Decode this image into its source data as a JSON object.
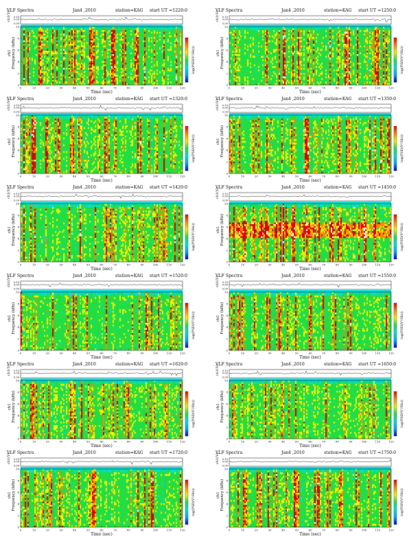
{
  "figure": {
    "panel_title_prefix": "VLF Spectra",
    "date": "Jan4 ,2010",
    "station": "station=KAG",
    "start_prefix": "start UT",
    "ch_label": "ch1(V)",
    "ch_ticks": [
      "0.00",
      "0.00"
    ],
    "ch_ticks_full": [
      "0.10",
      "0.00",
      "0.00"
    ],
    "y_label_left": "ch1",
    "y_label_freq": "Frequency (kHz)",
    "x_label": "Time (sec)",
    "colorbar_label": "log(PSD(V²/Hz))",
    "colorbar_ticks": [
      "-",
      "-",
      "-",
      "-"
    ],
    "x_ticks": [
      "0",
      "10",
      "20",
      "30",
      "40",
      "50",
      "60",
      "70",
      "80",
      "90",
      "100",
      "110",
      "120"
    ],
    "y_ticks": [
      "0",
      "2",
      "4",
      "6",
      "8",
      "10"
    ]
  },
  "chart_data": [
    {
      "type": "heatmap",
      "start": "=1220:0",
      "xlim": [
        0,
        120
      ],
      "ylim": [
        0,
        10
      ],
      "xlabel": "Time (sec)",
      "ylabel": "Frequency (kHz)",
      "colorscale": [
        "#0000cc",
        "#00aaff",
        "#00e0e0",
        "#22dd44",
        "#f4f400",
        "#ff8800",
        "#dd0000",
        "#ffffff"
      ]
    },
    {
      "type": "heatmap",
      "start": "=1250:0",
      "xlim": [
        0,
        120
      ],
      "ylim": [
        0,
        10
      ],
      "xlabel": "Time (sec)",
      "ylabel": "Frequency (kHz)",
      "colorscale": [
        "#0000cc",
        "#00aaff",
        "#00e0e0",
        "#22dd44",
        "#f4f400",
        "#ff8800",
        "#dd0000",
        "#ffffff"
      ]
    },
    {
      "type": "heatmap",
      "start": "=1320:0",
      "xlim": [
        0,
        120
      ],
      "ylim": [
        0,
        10
      ],
      "xlabel": "Time (sec)",
      "ylabel": "Frequency (kHz)",
      "colorscale": [
        "#0000cc",
        "#00aaff",
        "#00e0e0",
        "#22dd44",
        "#f4f400",
        "#ff8800",
        "#dd0000",
        "#ffffff"
      ]
    },
    {
      "type": "heatmap",
      "start": "=1350:0",
      "xlim": [
        0,
        120
      ],
      "ylim": [
        0,
        10
      ],
      "xlabel": "Time (sec)",
      "ylabel": "Frequency (kHz)",
      "colorscale": [
        "#0000cc",
        "#00aaff",
        "#00e0e0",
        "#22dd44",
        "#f4f400",
        "#ff8800",
        "#dd0000",
        "#ffffff"
      ]
    },
    {
      "type": "heatmap",
      "start": "=1420:0",
      "xlim": [
        0,
        120
      ],
      "ylim": [
        0,
        10
      ],
      "xlabel": "Time (sec)",
      "ylabel": "Frequency (kHz)",
      "colorscale": [
        "#0000cc",
        "#00aaff",
        "#00e0e0",
        "#22dd44",
        "#f4f400",
        "#ff8800",
        "#dd0000",
        "#ffffff"
      ]
    },
    {
      "type": "heatmap",
      "start": "=1450:0",
      "xlim": [
        0,
        120
      ],
      "ylim": [
        0,
        10
      ],
      "xlabel": "Time (sec)",
      "ylabel": "Frequency (kHz)",
      "colorscale": [
        "#0000cc",
        "#00aaff",
        "#00e0e0",
        "#22dd44",
        "#f4f400",
        "#ff8800",
        "#dd0000",
        "#ffffff"
      ]
    },
    {
      "type": "heatmap",
      "start": "=1520:0",
      "xlim": [
        0,
        120
      ],
      "ylim": [
        0,
        10
      ],
      "xlabel": "Time (sec)",
      "ylabel": "Frequency (kHz)",
      "colorscale": [
        "#0000cc",
        "#00aaff",
        "#00e0e0",
        "#22dd44",
        "#f4f400",
        "#ff8800",
        "#dd0000",
        "#ffffff"
      ]
    },
    {
      "type": "heatmap",
      "start": "=1550:0",
      "xlim": [
        0,
        120
      ],
      "ylim": [
        0,
        10
      ],
      "xlabel": "Time (sec)",
      "ylabel": "Frequency (kHz)",
      "colorscale": [
        "#0000cc",
        "#00aaff",
        "#00e0e0",
        "#22dd44",
        "#f4f400",
        "#ff8800",
        "#dd0000",
        "#ffffff"
      ]
    },
    {
      "type": "heatmap",
      "start": "=1620:0",
      "xlim": [
        0,
        120
      ],
      "ylim": [
        0,
        10
      ],
      "xlabel": "Time (sec)",
      "ylabel": "Frequency (kHz)",
      "colorscale": [
        "#0000cc",
        "#00aaff",
        "#00e0e0",
        "#22dd44",
        "#f4f400",
        "#ff8800",
        "#dd0000",
        "#ffffff"
      ]
    },
    {
      "type": "heatmap",
      "start": "=1650:0",
      "xlim": [
        0,
        120
      ],
      "ylim": [
        0,
        10
      ],
      "xlabel": "Time (sec)",
      "ylabel": "Frequency (kHz)",
      "colorscale": [
        "#0000cc",
        "#00aaff",
        "#00e0e0",
        "#22dd44",
        "#f4f400",
        "#ff8800",
        "#dd0000",
        "#ffffff"
      ]
    },
    {
      "type": "heatmap",
      "start": "=1720:0",
      "xlim": [
        0,
        120
      ],
      "ylim": [
        0,
        10
      ],
      "xlabel": "Time (sec)",
      "ylabel": "Frequency (kHz)",
      "colorscale": [
        "#0000cc",
        "#00aaff",
        "#00e0e0",
        "#22dd44",
        "#f4f400",
        "#ff8800",
        "#dd0000",
        "#ffffff"
      ]
    },
    {
      "type": "heatmap",
      "start": "=1750:0",
      "xlim": [
        0,
        120
      ],
      "ylim": [
        0,
        10
      ],
      "xlabel": "Time (sec)",
      "ylabel": "Frequency (kHz)",
      "colorscale": [
        "#0000cc",
        "#00aaff",
        "#00e0e0",
        "#22dd44",
        "#f4f400",
        "#ff8800",
        "#dd0000",
        "#ffffff"
      ]
    }
  ]
}
